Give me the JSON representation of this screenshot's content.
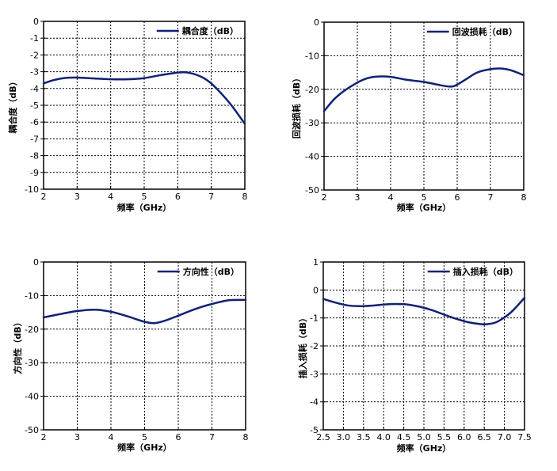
{
  "colors": {
    "series": "#0b1f8a",
    "axis": "#000000",
    "grid": "#000000",
    "background": "#ffffff"
  },
  "chart_data": [
    {
      "type": "line",
      "xlabel": "频率（GHz）",
      "ylabel": "耦合度（dB）",
      "xlim": [
        2,
        8
      ],
      "ylim": [
        -10,
        0
      ],
      "xticks": [
        2,
        3,
        4,
        5,
        6,
        7,
        8
      ],
      "xtick_labels": [
        "2",
        "3",
        "4",
        "5",
        "6",
        "7",
        "8"
      ],
      "yticks": [
        0,
        -1,
        -2,
        -3,
        -4,
        -5,
        -6,
        -7,
        -8,
        -9,
        -10
      ],
      "ytick_labels": [
        "0",
        "-1",
        "-2",
        "-3",
        "-4",
        "-5",
        "-6",
        "-7",
        "-8",
        "-9",
        "-10"
      ],
      "grid": true,
      "legend_position": "top-right",
      "series": [
        {
          "name": "耦合度（dB）",
          "x": [
            2.0,
            2.3,
            2.6,
            3.0,
            3.5,
            4.0,
            4.5,
            5.0,
            5.5,
            6.0,
            6.3,
            6.7,
            7.0,
            7.3,
            7.6,
            8.0
          ],
          "y": [
            -3.7,
            -3.5,
            -3.38,
            -3.35,
            -3.4,
            -3.45,
            -3.45,
            -3.38,
            -3.2,
            -3.05,
            -3.05,
            -3.3,
            -3.7,
            -4.3,
            -5.0,
            -6.1
          ]
        }
      ]
    },
    {
      "type": "line",
      "xlabel": "频率（GHz）",
      "ylabel": "回波损耗（dB）",
      "xlim": [
        2,
        8
      ],
      "ylim": [
        -50,
        0
      ],
      "xticks": [
        2,
        3,
        4,
        5,
        6,
        7,
        8
      ],
      "xtick_labels": [
        "2",
        "3",
        "4",
        "5",
        "6",
        "7",
        "8"
      ],
      "yticks": [
        0,
        -10,
        -20,
        -30,
        -40,
        -50
      ],
      "ytick_labels": [
        "0",
        "-10",
        "-20",
        "-30",
        "-40",
        "-50"
      ],
      "grid": true,
      "legend_position": "top-right",
      "series": [
        {
          "name": "回波损耗（dB）",
          "x": [
            2.0,
            2.3,
            2.6,
            3.0,
            3.3,
            3.6,
            4.0,
            4.5,
            5.0,
            5.5,
            5.8,
            6.0,
            6.3,
            6.6,
            7.0,
            7.3,
            7.6,
            8.0
          ],
          "y": [
            -26.5,
            -23,
            -20.5,
            -18,
            -16.7,
            -16.2,
            -16.3,
            -17.2,
            -17.8,
            -18.8,
            -19.2,
            -18.6,
            -16.8,
            -15,
            -14,
            -13.8,
            -14.3,
            -15.8
          ]
        }
      ]
    },
    {
      "type": "line",
      "xlabel": "频率（GHz）",
      "ylabel": "方向性（dB）",
      "xlim": [
        2,
        8
      ],
      "ylim": [
        -50,
        0
      ],
      "xticks": [
        2,
        3,
        4,
        5,
        6,
        7,
        8
      ],
      "xtick_labels": [
        "2",
        "3",
        "4",
        "5",
        "6",
        "7",
        "8"
      ],
      "yticks": [
        0,
        -10,
        -20,
        -30,
        -40,
        -50
      ],
      "ytick_labels": [
        "0",
        "-10",
        "-20",
        "-30",
        "-40",
        "-50"
      ],
      "grid": true,
      "legend_position": "top-right",
      "series": [
        {
          "name": "方向性（dB）",
          "x": [
            2.0,
            2.5,
            3.0,
            3.5,
            4.0,
            4.5,
            5.0,
            5.3,
            5.6,
            6.0,
            6.5,
            7.0,
            7.5,
            8.0
          ],
          "y": [
            -16.5,
            -15.5,
            -14.6,
            -14.2,
            -14.8,
            -16.2,
            -17.8,
            -18.2,
            -17.5,
            -16.0,
            -14.0,
            -12.5,
            -11.4,
            -11.3
          ]
        }
      ]
    },
    {
      "type": "line",
      "xlabel": "频率（GHz）",
      "ylabel": "插入损耗（dB）",
      "xlim": [
        2.5,
        7.5
      ],
      "ylim": [
        -5,
        1
      ],
      "xticks": [
        2.5,
        3.0,
        3.5,
        4.0,
        4.5,
        5.0,
        5.5,
        6.0,
        6.5,
        7.0,
        7.5
      ],
      "xtick_labels": [
        "2.5",
        "3.0",
        "3.5",
        "4.0",
        "4.5",
        "5.0",
        "5.5",
        "6.0",
        "6.5",
        "7.0",
        "7.5"
      ],
      "yticks": [
        1,
        0,
        -1,
        -2,
        -3,
        -4,
        -5
      ],
      "ytick_labels": [
        "1",
        "0",
        "-1",
        "-2",
        "-3",
        "-4",
        "-5"
      ],
      "grid": true,
      "legend_position": "top-right",
      "series": [
        {
          "name": "插入损耗（dB）",
          "x": [
            2.5,
            2.8,
            3.1,
            3.4,
            3.7,
            4.0,
            4.3,
            4.6,
            4.9,
            5.2,
            5.5,
            5.8,
            6.1,
            6.4,
            6.6,
            6.8,
            7.0,
            7.2,
            7.5
          ],
          "y": [
            -0.32,
            -0.45,
            -0.55,
            -0.58,
            -0.56,
            -0.52,
            -0.5,
            -0.52,
            -0.6,
            -0.72,
            -0.88,
            -1.03,
            -1.15,
            -1.22,
            -1.22,
            -1.15,
            -0.98,
            -0.75,
            -0.28
          ]
        }
      ]
    }
  ]
}
